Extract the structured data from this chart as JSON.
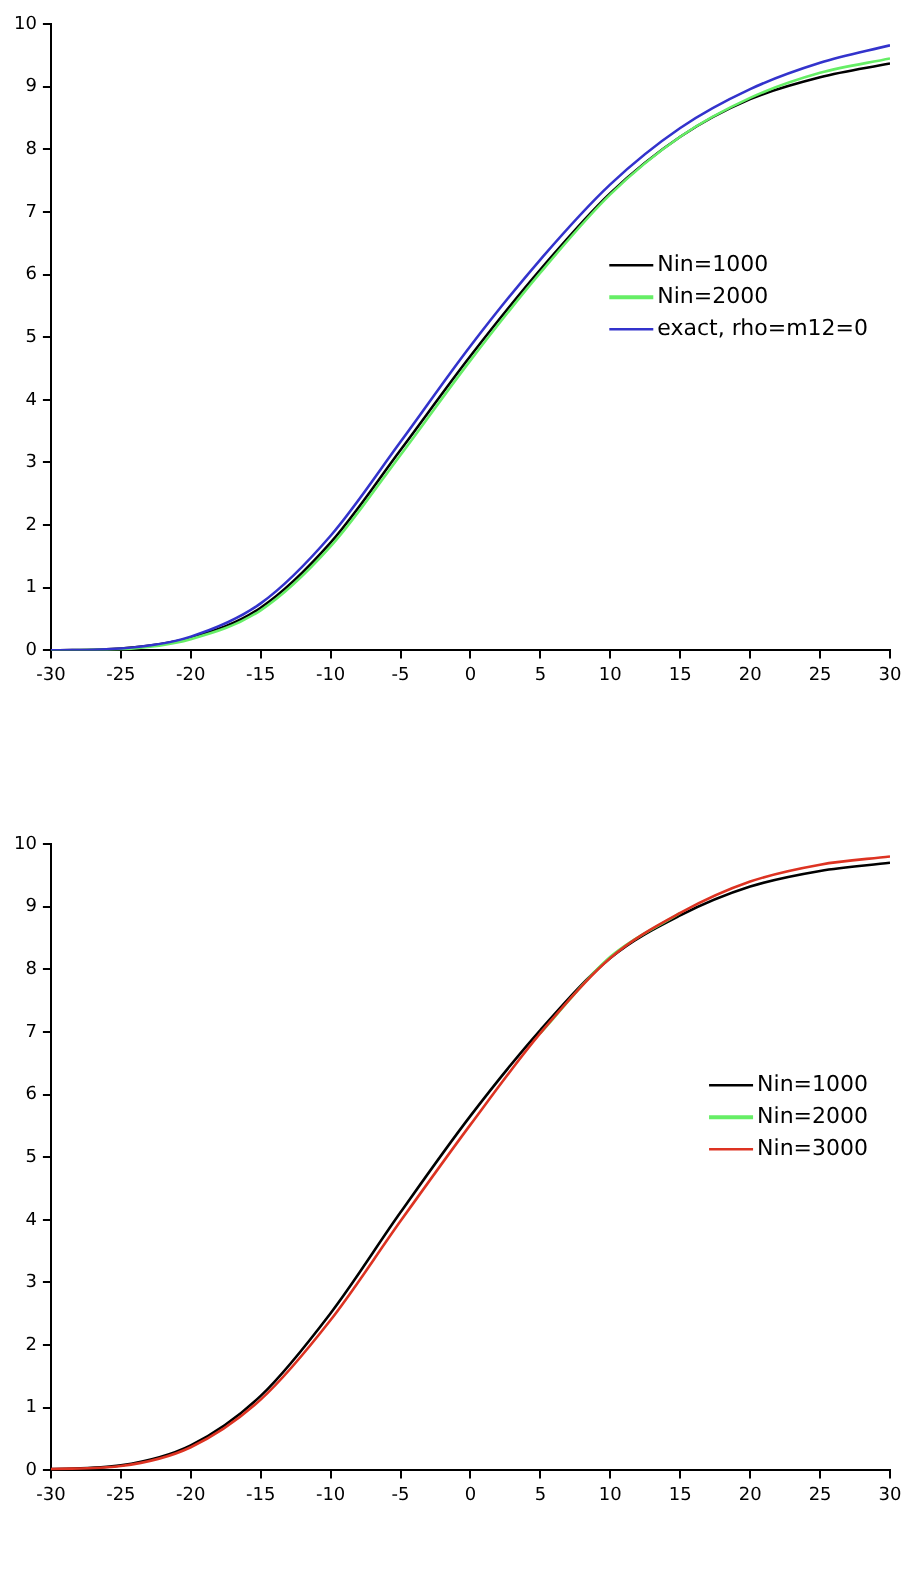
{
  "chart_data": [
    {
      "type": "line",
      "x": [
        -30,
        -25,
        -20,
        -15,
        -10,
        -5,
        0,
        5,
        10,
        15,
        20,
        25,
        30
      ],
      "xlim": [
        -30,
        30
      ],
      "xticks": [
        -30,
        -25,
        -20,
        -15,
        -10,
        -5,
        0,
        5,
        10,
        15,
        20,
        25,
        30
      ],
      "ylim": [
        0,
        10
      ],
      "yticks": [
        0,
        1,
        2,
        3,
        4,
        5,
        6,
        7,
        8,
        9,
        10
      ],
      "grid": false,
      "legend": "right",
      "marker": "none",
      "series": [
        {
          "name": "Nin=1000",
          "color": "#000000",
          "values": [
            0,
            0.03,
            0.2,
            0.68,
            1.72,
            3.2,
            4.7,
            6.08,
            7.3,
            8.2,
            8.8,
            9.15,
            9.37
          ]
        },
        {
          "name": "Nin=2000",
          "color": "#66ee66",
          "values": [
            0,
            0.02,
            0.18,
            0.64,
            1.66,
            3.12,
            4.63,
            6.03,
            7.28,
            8.2,
            8.82,
            9.22,
            9.45
          ]
        },
        {
          "name": "exact, rho=m12=0",
          "color": "#3333cc",
          "values": [
            0,
            0.03,
            0.22,
            0.75,
            1.83,
            3.33,
            4.86,
            6.24,
            7.44,
            8.34,
            8.96,
            9.38,
            9.66
          ]
        }
      ]
    },
    {
      "type": "line",
      "x": [
        -30,
        -25,
        -20,
        -15,
        -10,
        -5,
        0,
        5,
        10,
        15,
        20,
        25,
        30
      ],
      "xlim": [
        -30,
        30
      ],
      "xticks": [
        -30,
        -25,
        -20,
        -15,
        -10,
        -5,
        0,
        5,
        10,
        15,
        20,
        25,
        30
      ],
      "ylim": [
        0,
        10
      ],
      "yticks": [
        0,
        1,
        2,
        3,
        4,
        5,
        6,
        7,
        8,
        9,
        10
      ],
      "grid": false,
      "legend": "right",
      "marker": "none",
      "series": [
        {
          "name": "Nin=1000",
          "color": "#000000",
          "values": [
            0.02,
            0.08,
            0.4,
            1.19,
            2.51,
            4.12,
            5.66,
            7.03,
            8.18,
            8.86,
            9.32,
            9.57,
            9.7
          ]
        },
        {
          "name": "Nin=2000",
          "color": "#66ee66",
          "values": [
            null,
            null,
            null,
            null,
            null,
            null,
            null,
            6.98,
            8.2,
            8.9,
            null,
            null,
            null
          ]
        },
        {
          "name": "Nin=3000",
          "color": "#dd3322",
          "values": [
            0.02,
            0.07,
            0.37,
            1.13,
            2.4,
            3.98,
            5.52,
            6.98,
            8.18,
            8.9,
            9.4,
            9.67,
            9.8
          ]
        }
      ]
    }
  ]
}
